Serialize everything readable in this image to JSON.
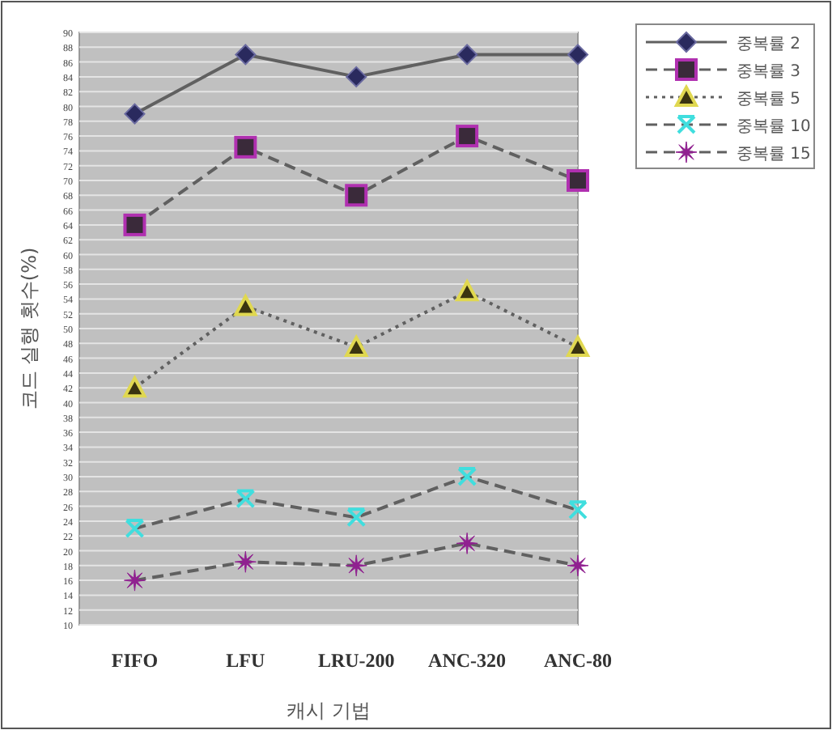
{
  "chart_data": {
    "type": "line",
    "xlabel": "캐시 기법",
    "ylabel": "코드 실행 횟수(%)",
    "categories": [
      "FIFO",
      "LFU",
      "LRU-200",
      "ANC-320",
      "ANC-80"
    ],
    "ylim": [
      10,
      90
    ],
    "yticks": [
      10,
      12,
      14,
      16,
      18,
      20,
      22,
      24,
      26,
      28,
      30,
      32,
      34,
      36,
      38,
      40,
      42,
      44,
      46,
      48,
      50,
      52,
      54,
      56,
      58,
      60,
      62,
      64,
      66,
      68,
      70,
      72,
      74,
      76,
      78,
      80,
      82,
      84,
      86,
      88,
      90
    ],
    "grid": "y",
    "legend": "top right",
    "series": [
      {
        "name": "중복률 2",
        "color": "#2a2a5e",
        "marker": "diamond",
        "line_style": "solid",
        "values": [
          79,
          87,
          84,
          87,
          87
        ]
      },
      {
        "name": "중복률 3",
        "color": "#b030b0",
        "marker": "square",
        "line_style": "dashed",
        "values": [
          64,
          74.5,
          68,
          76,
          70
        ]
      },
      {
        "name": "중복률 5",
        "color": "#e0d850",
        "marker": "triangle",
        "line_style": "dotted",
        "values": [
          42,
          53,
          47.5,
          55,
          47.5
        ]
      },
      {
        "name": "중복률 10",
        "color": "#40dede",
        "marker": "cross",
        "line_style": "dashed",
        "values": [
          23,
          27,
          24.5,
          30,
          25.5
        ]
      },
      {
        "name": "중복률 15",
        "color": "#902090",
        "marker": "star",
        "line_style": "dashed",
        "values": [
          16,
          18.5,
          18,
          21,
          18
        ]
      }
    ]
  }
}
